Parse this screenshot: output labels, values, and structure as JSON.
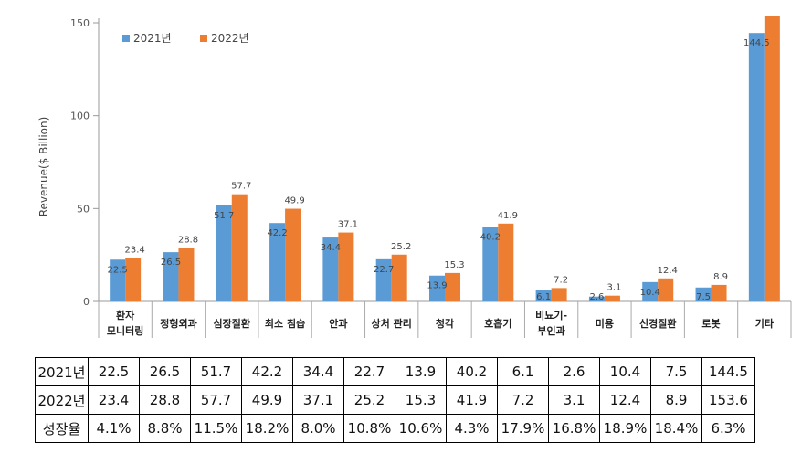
{
  "chart_data": {
    "type": "bar",
    "title": "",
    "ylabel": "Revenue($ Billion)",
    "xlabel": "",
    "ylim": [
      0,
      150
    ],
    "yticks": [
      0,
      50,
      100,
      150
    ],
    "legend_position": "top-left",
    "categories": [
      [
        "환자",
        "모니터링"
      ],
      [
        "정형외과"
      ],
      [
        "심장질환"
      ],
      [
        "최소 침습"
      ],
      [
        "안과"
      ],
      [
        "상처 관리"
      ],
      [
        "청각"
      ],
      [
        "호흡기"
      ],
      [
        "비뇨기-",
        "부인과"
      ],
      [
        "미용"
      ],
      [
        "신경질환"
      ],
      [
        "로봇"
      ],
      [
        "기타"
      ]
    ],
    "series": [
      {
        "name": "2021년",
        "color": "#5b9bd5",
        "values": [
          22.5,
          26.5,
          51.7,
          42.2,
          34.4,
          22.7,
          13.9,
          40.2,
          6.1,
          2.6,
          10.4,
          7.5,
          144.5
        ]
      },
      {
        "name": "2022년",
        "color": "#ed7d31",
        "values": [
          23.4,
          28.8,
          57.7,
          49.9,
          37.1,
          25.2,
          15.3,
          41.9,
          7.2,
          3.1,
          12.4,
          8.9,
          153.6
        ]
      }
    ],
    "data_labels_2022_shown": [
      true,
      true,
      true,
      true,
      true,
      true,
      true,
      true,
      true,
      true,
      true,
      true,
      false
    ]
  },
  "table": {
    "rows": [
      {
        "label": "2021년",
        "cells": [
          "22.5",
          "26.5",
          "51.7",
          "42.2",
          "34.4",
          "22.7",
          "13.9",
          "40.2",
          "6.1",
          "2.6",
          "10.4",
          "7.5",
          "144.5"
        ]
      },
      {
        "label": "2022년",
        "cells": [
          "23.4",
          "28.8",
          "57.7",
          "49.9",
          "37.1",
          "25.2",
          "15.3",
          "41.9",
          "7.2",
          "3.1",
          "12.4",
          "8.9",
          "153.6"
        ]
      },
      {
        "label": "성장율",
        "cells": [
          "4.1%",
          "8.8%",
          "11.5%",
          "18.2%",
          "8.0%",
          "10.8%",
          "10.6%",
          "4.3%",
          "17.9%",
          "16.8%",
          "18.9%",
          "18.4%",
          "6.3%"
        ]
      }
    ]
  }
}
